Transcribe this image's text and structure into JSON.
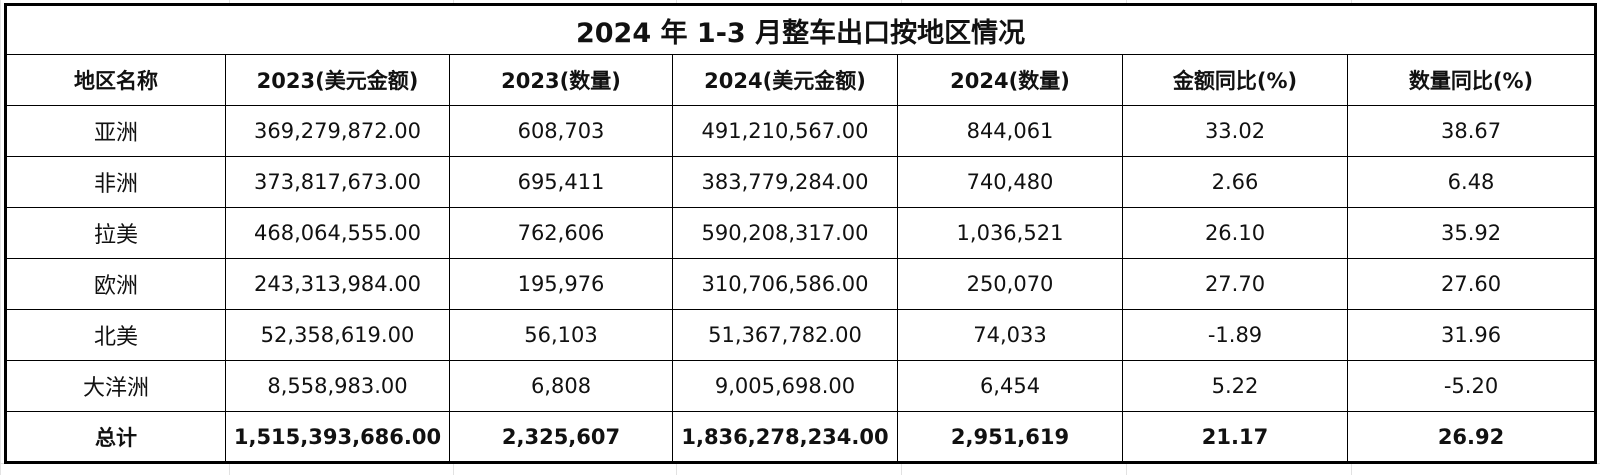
{
  "title": "2024 年 1-3 月整车出口按地区情况",
  "headers": [
    "地区名称",
    "2023(美元金额)",
    "2023(数量)",
    "2024(美元金额)",
    "2024(数量)",
    "金额同比(%)",
    "数量同比(%)"
  ],
  "rows": [
    [
      "亚洲",
      "369,279,872.00",
      "608,703",
      "491,210,567.00",
      "844,061",
      "33.02",
      "38.67"
    ],
    [
      "非洲",
      "373,817,673.00",
      "695,411",
      "383,779,284.00",
      "740,480",
      "2.66",
      "6.48"
    ],
    [
      "拉美",
      "468,064,555.00",
      "762,606",
      "590,208,317.00",
      "1,036,521",
      "26.10",
      "35.92"
    ],
    [
      "欧洲",
      "243,313,984.00",
      "195,976",
      "310,706,586.00",
      "250,070",
      "27.70",
      "27.60"
    ],
    [
      "北美",
      "52,358,619.00",
      "56,103",
      "51,367,782.00",
      "74,033",
      "-1.89",
      "31.96"
    ],
    [
      "大洋洲",
      "8,558,983.00",
      "6,808",
      "9,005,698.00",
      "6,454",
      "5.22",
      "-5.20"
    ]
  ],
  "total": [
    "总计",
    "1,515,393,686.00",
    "2,325,607",
    "1,836,278,234.00",
    "2,951,619",
    "21.17",
    "26.92"
  ],
  "chart_data": {
    "type": "table",
    "title": "2024 年 1-3 月整车出口按地区情况",
    "columns": [
      "地区名称",
      "2023(美元金额)",
      "2023(数量)",
      "2024(美元金额)",
      "2024(数量)",
      "金额同比(%)",
      "数量同比(%)"
    ],
    "rows": [
      [
        "亚洲",
        369279872.0,
        608703,
        491210567.0,
        844061,
        33.02,
        38.67
      ],
      [
        "非洲",
        373817673.0,
        695411,
        383779284.0,
        740480,
        2.66,
        6.48
      ],
      [
        "拉美",
        468064555.0,
        762606,
        590208317.0,
        1036521,
        26.1,
        35.92
      ],
      [
        "欧洲",
        243313984.0,
        195976,
        310706586.0,
        250070,
        27.7,
        27.6
      ],
      [
        "北美",
        52358619.0,
        56103,
        51367782.0,
        74033,
        -1.89,
        31.96
      ],
      [
        "大洋洲",
        8558983.0,
        6808,
        9005698.0,
        6454,
        5.22,
        -5.2
      ],
      [
        "总计",
        1515393686.0,
        2325607,
        1836278234.0,
        2951619,
        21.17,
        26.92
      ]
    ]
  }
}
